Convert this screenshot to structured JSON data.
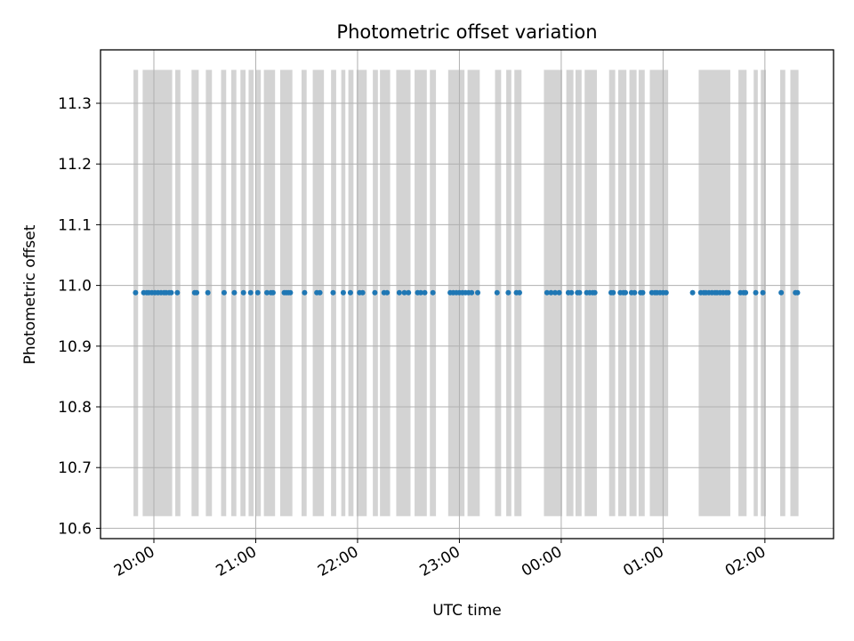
{
  "chart_data": {
    "type": "scatter",
    "title": "Photometric offset variation",
    "xlabel": "UTC time",
    "ylabel": "Photometric offset",
    "x_unit": "hours since 19:00 UTC (continuous across midnight)",
    "xlim": [
      1.476,
      8.674
    ],
    "ylim": [
      10.583,
      11.388
    ],
    "grid": true,
    "x_ticks": [
      {
        "value": 2.0,
        "label": "20:00"
      },
      {
        "value": 3.0,
        "label": "21:00"
      },
      {
        "value": 4.0,
        "label": "22:00"
      },
      {
        "value": 5.0,
        "label": "23:00"
      },
      {
        "value": 6.0,
        "label": "00:00"
      },
      {
        "value": 7.0,
        "label": "01:00"
      },
      {
        "value": 8.0,
        "label": "02:00"
      }
    ],
    "y_ticks": [
      {
        "value": 10.6,
        "label": "10.6"
      },
      {
        "value": 10.7,
        "label": "10.7"
      },
      {
        "value": 10.8,
        "label": "10.8"
      },
      {
        "value": 10.9,
        "label": "10.9"
      },
      {
        "value": 11.0,
        "label": "11.0"
      },
      {
        "value": 11.1,
        "label": "11.1"
      },
      {
        "value": 11.2,
        "label": "11.2"
      },
      {
        "value": 11.3,
        "label": "11.3"
      }
    ],
    "shaded_range": [
      10.62,
      11.355
    ],
    "shade_color": "#d3d3d3",
    "point_color": "#1f77b4",
    "points_y": 10.988,
    "shaded_intervals": [
      [
        1.8,
        1.845
      ],
      [
        1.89,
        2.18
      ],
      [
        2.21,
        2.26
      ],
      [
        2.37,
        2.44
      ],
      [
        2.51,
        2.57
      ],
      [
        2.66,
        2.71
      ],
      [
        2.76,
        2.81
      ],
      [
        2.85,
        2.9
      ],
      [
        2.93,
        2.98
      ],
      [
        3.0,
        3.05
      ],
      [
        3.08,
        3.19
      ],
      [
        3.24,
        3.36
      ],
      [
        3.45,
        3.5
      ],
      [
        3.56,
        3.67
      ],
      [
        3.74,
        3.79
      ],
      [
        3.84,
        3.88
      ],
      [
        3.91,
        3.96
      ],
      [
        3.99,
        4.09
      ],
      [
        4.15,
        4.2
      ],
      [
        4.22,
        4.32
      ],
      [
        4.38,
        4.52
      ],
      [
        4.56,
        4.68
      ],
      [
        4.71,
        4.77
      ],
      [
        4.89,
        5.05
      ],
      [
        5.08,
        5.2
      ],
      [
        5.35,
        5.41
      ],
      [
        5.46,
        5.51
      ],
      [
        5.54,
        5.61
      ],
      [
        5.83,
        6.01
      ],
      [
        6.05,
        6.12
      ],
      [
        6.14,
        6.2
      ],
      [
        6.23,
        6.35
      ],
      [
        6.47,
        6.53
      ],
      [
        6.56,
        6.64
      ],
      [
        6.67,
        6.74
      ],
      [
        6.76,
        6.82
      ],
      [
        6.87,
        7.05
      ],
      [
        7.35,
        7.66
      ],
      [
        7.74,
        7.82
      ],
      [
        7.89,
        7.93
      ],
      [
        7.96,
        8.01
      ],
      [
        8.15,
        8.2
      ],
      [
        8.25,
        8.33
      ]
    ],
    "points_x": [
      1.82,
      1.9,
      1.93,
      1.95,
      1.98,
      2.01,
      2.04,
      2.07,
      2.1,
      2.12,
      2.15,
      2.17,
      2.23,
      2.4,
      2.42,
      2.53,
      2.69,
      2.79,
      2.88,
      2.95,
      3.02,
      3.11,
      3.15,
      3.17,
      3.28,
      3.3,
      3.32,
      3.34,
      3.48,
      3.6,
      3.63,
      3.76,
      3.86,
      3.93,
      4.02,
      4.05,
      4.17,
      4.26,
      4.29,
      4.41,
      4.46,
      4.5,
      4.59,
      4.62,
      4.66,
      4.74,
      4.91,
      4.94,
      4.97,
      5.0,
      5.03,
      5.06,
      5.09,
      5.12,
      5.18,
      5.37,
      5.48,
      5.56,
      5.59,
      5.86,
      5.9,
      5.94,
      5.98,
      6.07,
      6.1,
      6.16,
      6.18,
      6.25,
      6.28,
      6.31,
      6.33,
      6.49,
      6.51,
      6.58,
      6.61,
      6.63,
      6.69,
      6.72,
      6.78,
      6.8,
      6.89,
      6.92,
      6.94,
      6.97,
      7.0,
      7.03,
      7.29,
      7.37,
      7.4,
      7.42,
      7.45,
      7.48,
      7.51,
      7.53,
      7.56,
      7.59,
      7.62,
      7.64,
      7.76,
      7.79,
      7.81,
      7.91,
      7.98,
      8.16,
      8.3,
      8.32
    ]
  }
}
